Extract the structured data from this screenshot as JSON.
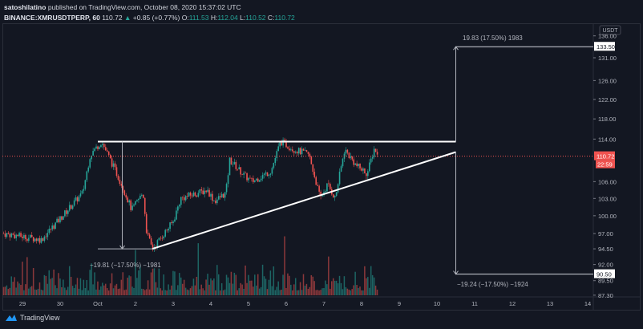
{
  "header": {
    "author": "satoshilatino",
    "published": "published on TradingView.com, October 08, 2020 15:37:02 UTC",
    "symbol": "BINANCE:XMRUSDTPERP, 60",
    "last": "110.72",
    "change": "+0.85 (+0.77%)",
    "open_label": "O:",
    "open": "111.53",
    "high_label": "H:",
    "high": "112.04",
    "low_label": "L:",
    "low": "110.52",
    "close_label": "C:",
    "close": "110.72"
  },
  "colors": {
    "up": "#26a69a",
    "down": "#ef5350",
    "bg": "#131722",
    "grid": "#2a2e39"
  },
  "footer": {
    "brand": "TradingView"
  },
  "chart_data": {
    "type": "candlestick",
    "currency": "USDT",
    "y_ticks": [
      "136.00",
      "131.00",
      "126.00",
      "122.00",
      "118.00",
      "114.00",
      "106.00",
      "103.00",
      "100.00",
      "97.00",
      "94.50",
      "92.00",
      "89.50",
      "87.30"
    ],
    "y_tick_values": [
      136,
      131,
      126,
      122,
      118,
      114,
      106,
      103,
      100,
      97,
      94.5,
      92,
      89.5,
      87.3
    ],
    "x_ticks": [
      "29",
      "30",
      "Oct",
      "2",
      "3",
      "4",
      "5",
      "6",
      "7",
      "8",
      "9",
      "10",
      "11",
      "12",
      "13",
      "14"
    ],
    "price_path_day_price": [
      [
        -0.5,
        97
      ],
      [
        0.5,
        96
      ],
      [
        1.0,
        99.5
      ],
      [
        1.6,
        104
      ],
      [
        1.8,
        111
      ],
      [
        2.1,
        113.5
      ],
      [
        2.6,
        106
      ],
      [
        2.9,
        101
      ],
      [
        3.2,
        104
      ],
      [
        3.3,
        97
      ],
      [
        3.45,
        94.5
      ],
      [
        4.0,
        99
      ],
      [
        4.2,
        103
      ],
      [
        4.9,
        104.5
      ],
      [
        5.1,
        102.5
      ],
      [
        5.4,
        104
      ],
      [
        5.5,
        110
      ],
      [
        5.9,
        107
      ],
      [
        6.1,
        106
      ],
      [
        6.6,
        108
      ],
      [
        6.85,
        113.5
      ],
      [
        7.2,
        112
      ],
      [
        7.6,
        111
      ],
      [
        7.9,
        103
      ],
      [
        8.1,
        105.5
      ],
      [
        8.3,
        103
      ],
      [
        8.55,
        112
      ],
      [
        8.85,
        109
      ],
      [
        9.15,
        107.5
      ],
      [
        9.35,
        112.5
      ],
      [
        9.42,
        110.72
      ]
    ],
    "last_price": "110.72",
    "countdown": "22:59",
    "resistance": 113.5,
    "support_trendline": [
      [
        3.45,
        94.5
      ],
      [
        11.5,
        111.5
      ]
    ],
    "target_up_price": "133.50",
    "target_down_price": "90.50",
    "measure_left": "−19.81 (−17.50%) −1981",
    "measure_up": "19.83 (17.50%) 1983",
    "measure_down": "−19.24 (−17.50%) −1924"
  }
}
